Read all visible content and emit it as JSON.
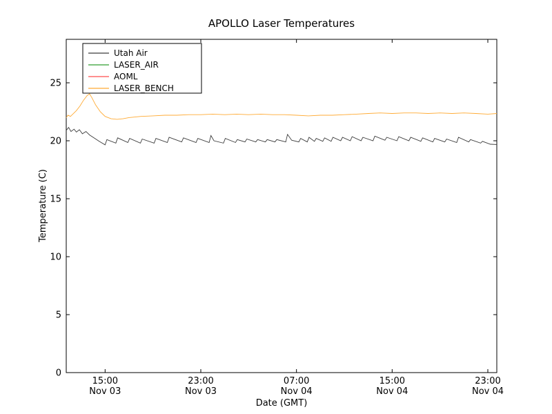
{
  "title": "APOLLO Laser Temperatures",
  "xlabel": "Date (GMT)",
  "ylabel": "Temperature (C)",
  "legend": {
    "position": "upper left",
    "items": [
      {
        "label": "Utah Air",
        "color": "#3b3b3b"
      },
      {
        "label": "LASER_AIR",
        "color": "#2e9e2e"
      },
      {
        "label": "AOML",
        "color": "#ff4c4c"
      },
      {
        "label": "LASER_BENCH",
        "color": "#ffaa33"
      }
    ]
  },
  "chart_data": {
    "type": "line",
    "title": "APOLLO Laser Temperatures",
    "xlabel": "Date (GMT)",
    "ylabel": "Temperature (C)",
    "x_unit": "hours since Nov 03 00:00 GMT",
    "xlim": [
      11.75,
      47.75
    ],
    "ylim": [
      0,
      28.75
    ],
    "grid": false,
    "legend_position": "upper left",
    "yticks": [
      0,
      5,
      10,
      15,
      20,
      25
    ],
    "xticks": [
      {
        "value": 15,
        "line1": "15:00",
        "line2": "Nov 03"
      },
      {
        "value": 23,
        "line1": "23:00",
        "line2": "Nov 03"
      },
      {
        "value": 31,
        "line1": "07:00",
        "line2": "Nov 04"
      },
      {
        "value": 39,
        "line1": "15:00",
        "line2": "Nov 04"
      },
      {
        "value": 47,
        "line1": "23:00",
        "line2": "Nov 04"
      }
    ],
    "series": [
      {
        "name": "Utah Air",
        "color": "#3b3b3b",
        "points": [
          [
            11.75,
            20.9
          ],
          [
            11.95,
            21.15
          ],
          [
            12.15,
            20.8
          ],
          [
            12.4,
            21.0
          ],
          [
            12.6,
            20.75
          ],
          [
            12.85,
            20.95
          ],
          [
            13.1,
            20.6
          ],
          [
            13.4,
            20.8
          ],
          [
            13.7,
            20.5
          ],
          [
            14.0,
            20.3
          ],
          [
            14.5,
            19.95
          ],
          [
            15.0,
            19.65
          ],
          [
            15.15,
            20.1
          ],
          [
            15.9,
            19.8
          ],
          [
            16.05,
            20.25
          ],
          [
            16.9,
            19.85
          ],
          [
            17.05,
            20.2
          ],
          [
            17.95,
            19.8
          ],
          [
            18.1,
            20.15
          ],
          [
            19.1,
            19.8
          ],
          [
            19.25,
            20.2
          ],
          [
            20.2,
            19.85
          ],
          [
            20.35,
            20.3
          ],
          [
            21.4,
            19.9
          ],
          [
            21.55,
            20.25
          ],
          [
            22.6,
            19.85
          ],
          [
            22.75,
            20.2
          ],
          [
            23.7,
            19.85
          ],
          [
            23.85,
            20.45
          ],
          [
            24.1,
            20.0
          ],
          [
            24.9,
            19.8
          ],
          [
            25.05,
            20.2
          ],
          [
            25.9,
            19.85
          ],
          [
            26.05,
            20.1
          ],
          [
            26.7,
            19.9
          ],
          [
            26.85,
            20.15
          ],
          [
            27.6,
            19.9
          ],
          [
            27.75,
            20.1
          ],
          [
            28.4,
            19.9
          ],
          [
            28.55,
            20.1
          ],
          [
            29.2,
            19.9
          ],
          [
            29.35,
            20.1
          ],
          [
            30.1,
            19.9
          ],
          [
            30.25,
            20.55
          ],
          [
            30.6,
            20.05
          ],
          [
            31.2,
            19.9
          ],
          [
            31.35,
            20.2
          ],
          [
            31.9,
            19.9
          ],
          [
            32.05,
            20.3
          ],
          [
            32.5,
            19.95
          ],
          [
            32.65,
            20.2
          ],
          [
            33.2,
            19.95
          ],
          [
            33.35,
            20.25
          ],
          [
            33.9,
            19.95
          ],
          [
            34.05,
            20.3
          ],
          [
            34.7,
            20.0
          ],
          [
            34.85,
            20.3
          ],
          [
            35.5,
            20.0
          ],
          [
            35.65,
            20.35
          ],
          [
            36.4,
            20.0
          ],
          [
            36.55,
            20.3
          ],
          [
            37.4,
            20.0
          ],
          [
            37.55,
            20.4
          ],
          [
            38.4,
            20.05
          ],
          [
            38.55,
            20.3
          ],
          [
            39.4,
            20.0
          ],
          [
            39.55,
            20.35
          ],
          [
            40.4,
            20.0
          ],
          [
            40.55,
            20.3
          ],
          [
            41.4,
            19.95
          ],
          [
            41.55,
            20.25
          ],
          [
            42.4,
            19.9
          ],
          [
            42.55,
            20.2
          ],
          [
            43.4,
            19.9
          ],
          [
            43.55,
            20.15
          ],
          [
            44.4,
            19.85
          ],
          [
            44.55,
            20.3
          ],
          [
            45.4,
            19.9
          ],
          [
            45.55,
            20.1
          ],
          [
            46.4,
            19.8
          ],
          [
            46.55,
            19.95
          ],
          [
            47.2,
            19.7
          ],
          [
            47.75,
            19.68
          ]
        ]
      },
      {
        "name": "LASER_AIR",
        "color": "#2e9e2e",
        "points": []
      },
      {
        "name": "AOML",
        "color": "#ff4c4c",
        "points": []
      },
      {
        "name": "LASER_BENCH",
        "color": "#ffaa33",
        "points": [
          [
            11.75,
            22.0
          ],
          [
            11.9,
            22.2
          ],
          [
            12.1,
            22.1
          ],
          [
            12.3,
            22.3
          ],
          [
            12.6,
            22.6
          ],
          [
            12.9,
            23.0
          ],
          [
            13.2,
            23.5
          ],
          [
            13.5,
            23.9
          ],
          [
            13.7,
            24.05
          ],
          [
            13.9,
            23.7
          ],
          [
            14.2,
            23.1
          ],
          [
            14.6,
            22.5
          ],
          [
            15.0,
            22.1
          ],
          [
            15.5,
            21.9
          ],
          [
            16.0,
            21.85
          ],
          [
            16.5,
            21.9
          ],
          [
            17.0,
            22.0
          ],
          [
            17.5,
            22.05
          ],
          [
            18.0,
            22.1
          ],
          [
            19.0,
            22.15
          ],
          [
            20.0,
            22.2
          ],
          [
            21.0,
            22.2
          ],
          [
            22.0,
            22.25
          ],
          [
            23.0,
            22.25
          ],
          [
            24.0,
            22.3
          ],
          [
            25.0,
            22.25
          ],
          [
            26.0,
            22.3
          ],
          [
            27.0,
            22.25
          ],
          [
            28.0,
            22.3
          ],
          [
            29.0,
            22.25
          ],
          [
            30.0,
            22.25
          ],
          [
            31.0,
            22.2
          ],
          [
            32.0,
            22.15
          ],
          [
            33.0,
            22.2
          ],
          [
            34.0,
            22.2
          ],
          [
            35.0,
            22.25
          ],
          [
            36.0,
            22.3
          ],
          [
            37.0,
            22.35
          ],
          [
            38.0,
            22.4
          ],
          [
            39.0,
            22.35
          ],
          [
            40.0,
            22.4
          ],
          [
            41.0,
            22.4
          ],
          [
            42.0,
            22.35
          ],
          [
            43.0,
            22.4
          ],
          [
            44.0,
            22.35
          ],
          [
            45.0,
            22.4
          ],
          [
            46.0,
            22.35
          ],
          [
            47.0,
            22.3
          ],
          [
            47.75,
            22.35
          ]
        ]
      }
    ]
  }
}
